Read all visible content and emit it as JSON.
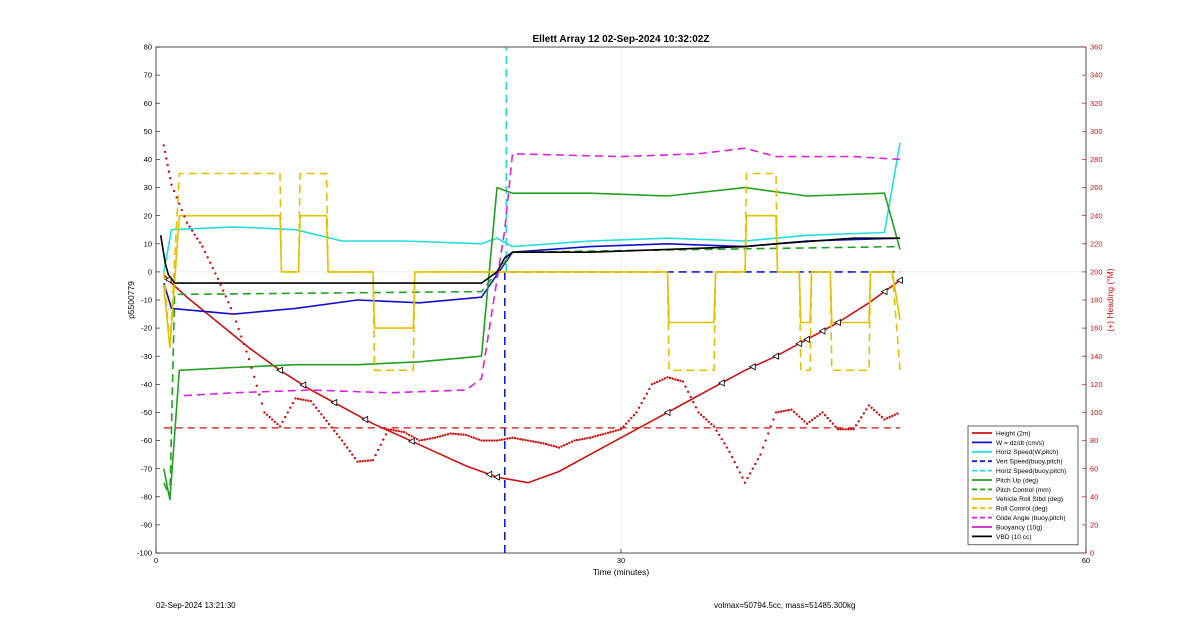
{
  "footer": {
    "left": "02-Sep-2024 13:21:30",
    "right": "volmax=50794.5cc, mass=51485.300kg"
  },
  "chart_data": {
    "type": "line",
    "title": "Ellett Array 12 02-Sep-2024 10:32:02Z",
    "xlabel": "Time (minutes)",
    "ylabel": "p5500779",
    "y2label": "(+) Heading (°M)",
    "xlim": [
      0,
      60
    ],
    "ylim": [
      -100,
      80
    ],
    "y2lim": [
      0,
      360
    ],
    "xticks": [
      0,
      30,
      60
    ],
    "yticks": [
      -100,
      -90,
      -80,
      -70,
      -60,
      -50,
      -40,
      -30,
      -20,
      -10,
      0,
      10,
      20,
      30,
      40,
      50,
      60,
      70,
      80
    ],
    "y2ticks": [
      0,
      20,
      40,
      60,
      80,
      100,
      120,
      140,
      160,
      180,
      200,
      220,
      240,
      260,
      280,
      300,
      320,
      340,
      360
    ],
    "grid": false,
    "legend_position": "bottom-right",
    "series": [
      {
        "name": "Height (2m)",
        "color": "#cc1111",
        "dash": "solid",
        "x": [
          0.5,
          1,
          2,
          4,
          6,
          8,
          10,
          12,
          14,
          16,
          18,
          20,
          22,
          24,
          26,
          28,
          30,
          32,
          34,
          36,
          38,
          40,
          42,
          44,
          46,
          48
        ],
        "y": [
          -1,
          -4,
          -9,
          -18,
          -27,
          -35,
          -42,
          -48,
          -54,
          -59,
          -64,
          -69,
          -73,
          -75,
          -71,
          -65,
          -59,
          -53,
          -47,
          -41,
          -35,
          -30,
          -24,
          -18,
          -11,
          -3
        ]
      },
      {
        "name": "W = dz/dt (cm/s)",
        "color": "#1010cc",
        "dash": "solid",
        "x": [
          0.5,
          1,
          5,
          9,
          13,
          17,
          21,
          22,
          23,
          28,
          33,
          38,
          42,
          48
        ],
        "y": [
          -4,
          -13,
          -15,
          -13,
          -10,
          -11,
          -9,
          -1,
          7,
          9,
          10,
          9,
          11,
          12
        ]
      },
      {
        "name": "Horiz Speed(W,pitch)",
        "color": "#22dddd",
        "dash": "solid",
        "x": [
          0.5,
          1,
          5,
          9,
          12,
          16,
          21,
          22,
          23,
          28,
          33,
          38,
          42,
          47,
          48
        ],
        "y": [
          0,
          15,
          16,
          15,
          11,
          11,
          10,
          12,
          9,
          11,
          12,
          11,
          13,
          14,
          46
        ]
      },
      {
        "name": "Vert Speed(buoy,pitch)",
        "color": "#1020cc",
        "dash": "dashed",
        "x": [
          22.5,
          22.5,
          22.6,
          48
        ],
        "y": [
          -100,
          0,
          0,
          0
        ]
      },
      {
        "name": "Horiz Speed(buoy,pitch)",
        "color": "#22dddd",
        "dash": "dashed",
        "x": [
          22.6,
          22.6
        ],
        "y": [
          0,
          80
        ]
      },
      {
        "name": "Pitch Up (deg)",
        "color": "#22a022",
        "dash": "solid",
        "x": [
          0.5,
          0.9,
          1.5,
          5,
          9,
          13,
          17,
          21,
          22,
          23,
          28,
          33,
          38,
          42,
          47,
          48
        ],
        "y": [
          -70,
          -81,
          -35,
          -34,
          -33,
          -33,
          -32,
          -30,
          30,
          28,
          28,
          27,
          30,
          27,
          28,
          8
        ]
      },
      {
        "name": "Pitch Control (mm)",
        "color": "#22a022",
        "dash": "dashed",
        "x": [
          0.5,
          0.9,
          1.2,
          21,
          22,
          23,
          48
        ],
        "y": [
          -75,
          -80,
          -8,
          -7,
          0,
          7,
          9
        ]
      },
      {
        "name": "Vehicle Roll Stbd (deg)",
        "color": "#e6c000",
        "dash": "solid",
        "x": [
          0.5,
          0.9,
          1.5,
          8,
          8.1,
          9.2,
          9.3,
          11,
          11.1,
          14,
          14.1,
          16.6,
          16.7,
          22,
          23,
          30,
          33,
          33.1,
          36,
          36.1,
          38,
          38.1,
          40,
          40.1,
          41.5,
          41.6,
          42.2,
          42.3,
          43.5,
          43.6,
          46,
          46.1,
          47.5,
          48
        ],
        "y": [
          -5,
          -27,
          20,
          20,
          0,
          0,
          20,
          20,
          0,
          0,
          -20,
          -20,
          0,
          0,
          0,
          0,
          0,
          -18,
          -18,
          0,
          0,
          20,
          20,
          0,
          0,
          -18,
          -18,
          0,
          0,
          -18,
          -18,
          0,
          0,
          -17
        ]
      },
      {
        "name": "Roll Control (deg)",
        "color": "#e6c000",
        "dash": "dashed",
        "x": [
          0.5,
          0.9,
          1.5,
          8,
          8.1,
          9.2,
          9.3,
          11,
          11.1,
          14,
          14.1,
          16.6,
          16.7,
          22,
          23,
          33,
          33.1,
          36,
          36.1,
          38,
          38.1,
          40,
          40.1,
          41.5,
          41.6,
          42.2,
          42.3,
          43.5,
          43.6,
          46,
          46.1,
          47.5,
          48
        ],
        "y": [
          0,
          -27,
          35,
          35,
          0,
          0,
          35,
          35,
          0,
          0,
          -35,
          -35,
          0,
          0,
          0,
          0,
          -35,
          -35,
          0,
          0,
          35,
          35,
          0,
          0,
          -35,
          -35,
          0,
          0,
          -35,
          -35,
          0,
          0,
          -35
        ]
      },
      {
        "name": "Glide Angle (buoy,pitch)",
        "color": "#dd22dd",
        "dash": "dashed",
        "x": [
          1.8,
          5,
          10,
          15,
          20,
          21,
          22.5,
          23,
          30,
          35,
          38,
          40,
          45,
          48
        ],
        "y": [
          -44,
          -43,
          -42,
          -43,
          -42,
          -38,
          15,
          42,
          41,
          42,
          44,
          41,
          41,
          40
        ]
      },
      {
        "name": "Buoyancy (10g)",
        "color": "#cc22cc",
        "dash": "solid",
        "x": [],
        "y": []
      },
      {
        "name": "VBD (10 cc)",
        "color": "#000000",
        "dash": "solid",
        "x": [
          0.3,
          0.6,
          0.8,
          1.2,
          21,
          22,
          22.5,
          23,
          28,
          33,
          38,
          40,
          45,
          48
        ],
        "y": [
          13,
          3,
          -1,
          -4,
          -4,
          0,
          5,
          7,
          7,
          8,
          9,
          10,
          12,
          12
        ]
      }
    ],
    "heading": {
      "color": "#cc1111",
      "axis": "right",
      "x": [
        0.5,
        1,
        2,
        3,
        4,
        5,
        6,
        7,
        8,
        9,
        10,
        11,
        12,
        13,
        14,
        15,
        16,
        17,
        18,
        19,
        20,
        21,
        22,
        23,
        24,
        25,
        26,
        27,
        28,
        29,
        30,
        31,
        32,
        33,
        34,
        35,
        36,
        37,
        38,
        39,
        40,
        41,
        42,
        43,
        44,
        45,
        46,
        47,
        48
      ],
      "y": [
        290,
        262,
        235,
        218,
        195,
        170,
        138,
        100,
        90,
        110,
        108,
        94,
        80,
        65,
        66,
        88,
        86,
        80,
        82,
        85,
        84,
        80,
        80,
        82,
        80,
        78,
        75,
        80,
        82,
        85,
        88,
        100,
        120,
        125,
        122,
        100,
        90,
        72,
        50,
        70,
        100,
        102,
        92,
        100,
        88,
        88,
        105,
        95,
        100
      ]
    },
    "heading_reference": {
      "color": "#cc1111",
      "dash": "dashed",
      "y2": 89
    },
    "legend_series_order": [
      "Height (2m)",
      "W = dz/dt (cm/s)",
      "Horiz Speed(W,pitch)",
      "Vert Speed(buoy,pitch)",
      "Horiz Speed(buoy,pitch)",
      "Pitch Up (deg)",
      "Pitch Control (mm)",
      "Vehicle Roll Stbd (deg)",
      "Roll Control (deg)",
      "Glide Angle (buoy,pitch)",
      "Buoyancy (10g)",
      "VBD (10 cc)"
    ]
  }
}
